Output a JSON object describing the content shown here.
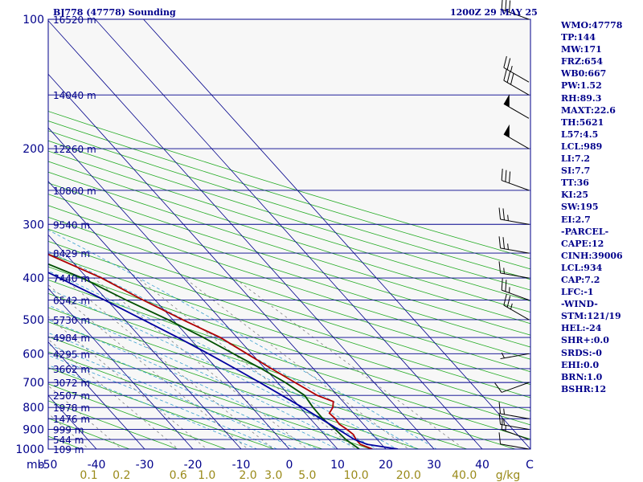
{
  "header": {
    "title_left": "BJ778 (47778) Sounding",
    "title_right": "1200Z 29 MAY 25"
  },
  "indices": [
    "WMO:47778",
    "TP:144",
    "MW:171",
    "FRZ:654",
    "WB0:667",
    "PW:1.52",
    "RH:89.3",
    "MAXT:22.6",
    "TH:5621",
    "L57:4.5",
    "LCL:989",
    "LI:7.2",
    "SI:7.7",
    "TT:36",
    "KI:25",
    "SW:195",
    "EI:2.7",
    "-PARCEL-",
    "CAPE:12",
    "CINH:39006",
    "LCL:934",
    "CAP:7.2",
    "LFC:-1",
    "-WIND-",
    "STM:121/19",
    "HEL:-24",
    "SHR+:0.0",
    "SRDS:-0",
    "EHI:0.0",
    "BRN:1.0",
    "BSHR:12"
  ],
  "colors": {
    "background": "#f7f7f7",
    "isobar": "#00008b",
    "isotherm": "#00008b",
    "dry_adiabat": "#22aa22",
    "moist_adiabat": "#3aa0d0",
    "mixing_ratio": "#808080",
    "temperature": "#b00000",
    "dewpoint": "#005000",
    "parcel": "#0000a0",
    "wind": "#000000",
    "axis_text": "#00008b",
    "mixing_text": "#9a8a1a"
  },
  "chart_data": {
    "type": "line",
    "diagram": "skew-t log-p",
    "pressure_range_hpa": [
      1000,
      100
    ],
    "temperature_range_c": [
      -50,
      50
    ],
    "pressure_levels": [
      100,
      200,
      300,
      400,
      500,
      600,
      700,
      800,
      900,
      1000
    ],
    "pressure_tick_labels": [
      "100",
      "200",
      "300",
      "400",
      "500",
      "600",
      "700",
      "800",
      "900",
      "1000"
    ],
    "pressure_unit_label": "mb",
    "temperature_ticks": [
      -50,
      -40,
      -30,
      -20,
      -10,
      0,
      10,
      20,
      30,
      40
    ],
    "temperature_tick_labels": [
      "-50",
      "-40",
      "-30",
      "-20",
      "-10",
      "0",
      "10",
      "20",
      "30",
      "40"
    ],
    "temperature_unit_label": "C",
    "height_levels": [
      {
        "p": 100,
        "label": "16520 m"
      },
      {
        "p": 150,
        "label": "14040 m"
      },
      {
        "p": 200,
        "label": "12260 m"
      },
      {
        "p": 250,
        "label": "10800 m"
      },
      {
        "p": 300,
        "label": "9540 m"
      },
      {
        "p": 350,
        "label": "8429 m"
      },
      {
        "p": 400,
        "label": "7440 m"
      },
      {
        "p": 450,
        "label": "6542 m"
      },
      {
        "p": 500,
        "label": "5730 m"
      },
      {
        "p": 550,
        "label": "4984 m"
      },
      {
        "p": 600,
        "label": "4295 m"
      },
      {
        "p": 650,
        "label": "3662 m"
      },
      {
        "p": 700,
        "label": "3072 m"
      },
      {
        "p": 750,
        "label": "2507 m"
      },
      {
        "p": 800,
        "label": "1978 m"
      },
      {
        "p": 850,
        "label": "1476 m"
      },
      {
        "p": 900,
        "label": "999 m"
      },
      {
        "p": 950,
        "label": "544 m"
      },
      {
        "p": 1000,
        "label": "109 m"
      }
    ],
    "mixing_ratio_labels": [
      {
        "w": 0.1,
        "label": "0.1"
      },
      {
        "w": 0.2,
        "label": "0.2"
      },
      {
        "w": 0.6,
        "label": "0.6"
      },
      {
        "w": 1.0,
        "label": "1.0"
      },
      {
        "w": 2.0,
        "label": "2.0"
      },
      {
        "w": 3.0,
        "label": "3.0"
      },
      {
        "w": 5.0,
        "label": "5.0"
      },
      {
        "w": 10.0,
        "label": "10.0"
      },
      {
        "w": 20.0,
        "label": "20.0"
      },
      {
        "w": 40.0,
        "label": "40.0"
      }
    ],
    "mixing_ratio_unit": "g/kg",
    "series": [
      {
        "role": "temperature",
        "points": [
          [
            1000,
            17.2
          ],
          [
            975,
            15.6
          ],
          [
            950,
            15.6
          ],
          [
            925,
            16.0
          ],
          [
            900,
            15.6
          ],
          [
            875,
            15.0
          ],
          [
            850,
            15.2
          ],
          [
            825,
            15.0
          ],
          [
            800,
            16.8
          ],
          [
            775,
            18.0
          ],
          [
            750,
            15.8
          ],
          [
            700,
            13.6
          ],
          [
            650,
            11.3
          ],
          [
            600,
            9.0
          ],
          [
            550,
            6.5
          ],
          [
            500,
            2.0
          ],
          [
            450,
            -2.5
          ],
          [
            400,
            -7.0
          ],
          [
            350,
            -14.0
          ],
          [
            300,
            -23.0
          ],
          [
            250,
            -33.0
          ],
          [
            200,
            -45.0
          ],
          [
            150,
            -57.0
          ],
          [
            135,
            -60.0
          ],
          [
            120,
            -58.0
          ],
          [
            110,
            -55.0
          ],
          [
            100,
            -55.0
          ]
        ]
      },
      {
        "role": "dewpoint",
        "points": [
          [
            1000,
            14.5
          ],
          [
            950,
            13.5
          ],
          [
            900,
            13.2
          ],
          [
            850,
            12.6
          ],
          [
            800,
            12.7
          ],
          [
            750,
            13.2
          ],
          [
            700,
            11.6
          ],
          [
            650,
            9.2
          ],
          [
            600,
            6.2
          ],
          [
            550,
            3.0
          ],
          [
            500,
            -1.0
          ],
          [
            450,
            -6.0
          ],
          [
            400,
            -11.0
          ],
          [
            350,
            -19.0
          ],
          [
            300,
            -29.0
          ],
          [
            290,
            -31.0
          ],
          [
            285,
            -37.0
          ],
          [
            265,
            -36.5
          ]
        ]
      },
      {
        "role": "parcel",
        "points": [
          [
            1000,
            22.5
          ],
          [
            975,
            17.0
          ],
          [
            950,
            15.3
          ],
          [
            900,
            13.8
          ],
          [
            850,
            12.2
          ],
          [
            800,
            10.5
          ],
          [
            750,
            8.5
          ],
          [
            700,
            6.3
          ],
          [
            650,
            3.8
          ],
          [
            600,
            1.0
          ],
          [
            550,
            -2.3
          ],
          [
            500,
            -6.2
          ],
          [
            450,
            -10.5
          ],
          [
            400,
            -15.7
          ],
          [
            350,
            -21.7
          ],
          [
            300,
            -29.2
          ],
          [
            250,
            -38.4
          ],
          [
            200,
            -50.0
          ],
          [
            150,
            -65.0
          ],
          [
            110,
            -81.0
          ]
        ]
      }
    ],
    "wind_barbs": [
      {
        "p": 1000,
        "dir": 280,
        "speed_kt": 10
      },
      {
        "p": 950,
        "dir": 290,
        "speed_kt": 15
      },
      {
        "p": 900,
        "dir": 280,
        "speed_kt": 15
      },
      {
        "p": 850,
        "dir": 280,
        "speed_kt": 15
      },
      {
        "p": 700,
        "dir": 250,
        "speed_kt": 10
      },
      {
        "p": 600,
        "dir": 260,
        "speed_kt": 5
      },
      {
        "p": 500,
        "dir": 300,
        "speed_kt": 25
      },
      {
        "p": 450,
        "dir": 290,
        "speed_kt": 25
      },
      {
        "p": 400,
        "dir": 280,
        "speed_kt": 15
      },
      {
        "p": 350,
        "dir": 280,
        "speed_kt": 25
      },
      {
        "p": 300,
        "dir": 280,
        "speed_kt": 25
      },
      {
        "p": 250,
        "dir": 290,
        "speed_kt": 30
      },
      {
        "p": 200,
        "dir": 300,
        "speed_kt": 50
      },
      {
        "p": 170,
        "dir": 300,
        "speed_kt": 50
      },
      {
        "p": 150,
        "dir": 300,
        "speed_kt": 30
      },
      {
        "p": 140,
        "dir": 300,
        "speed_kt": 25
      },
      {
        "p": 100,
        "dir": 290,
        "speed_kt": 30
      }
    ],
    "grid": true
  }
}
